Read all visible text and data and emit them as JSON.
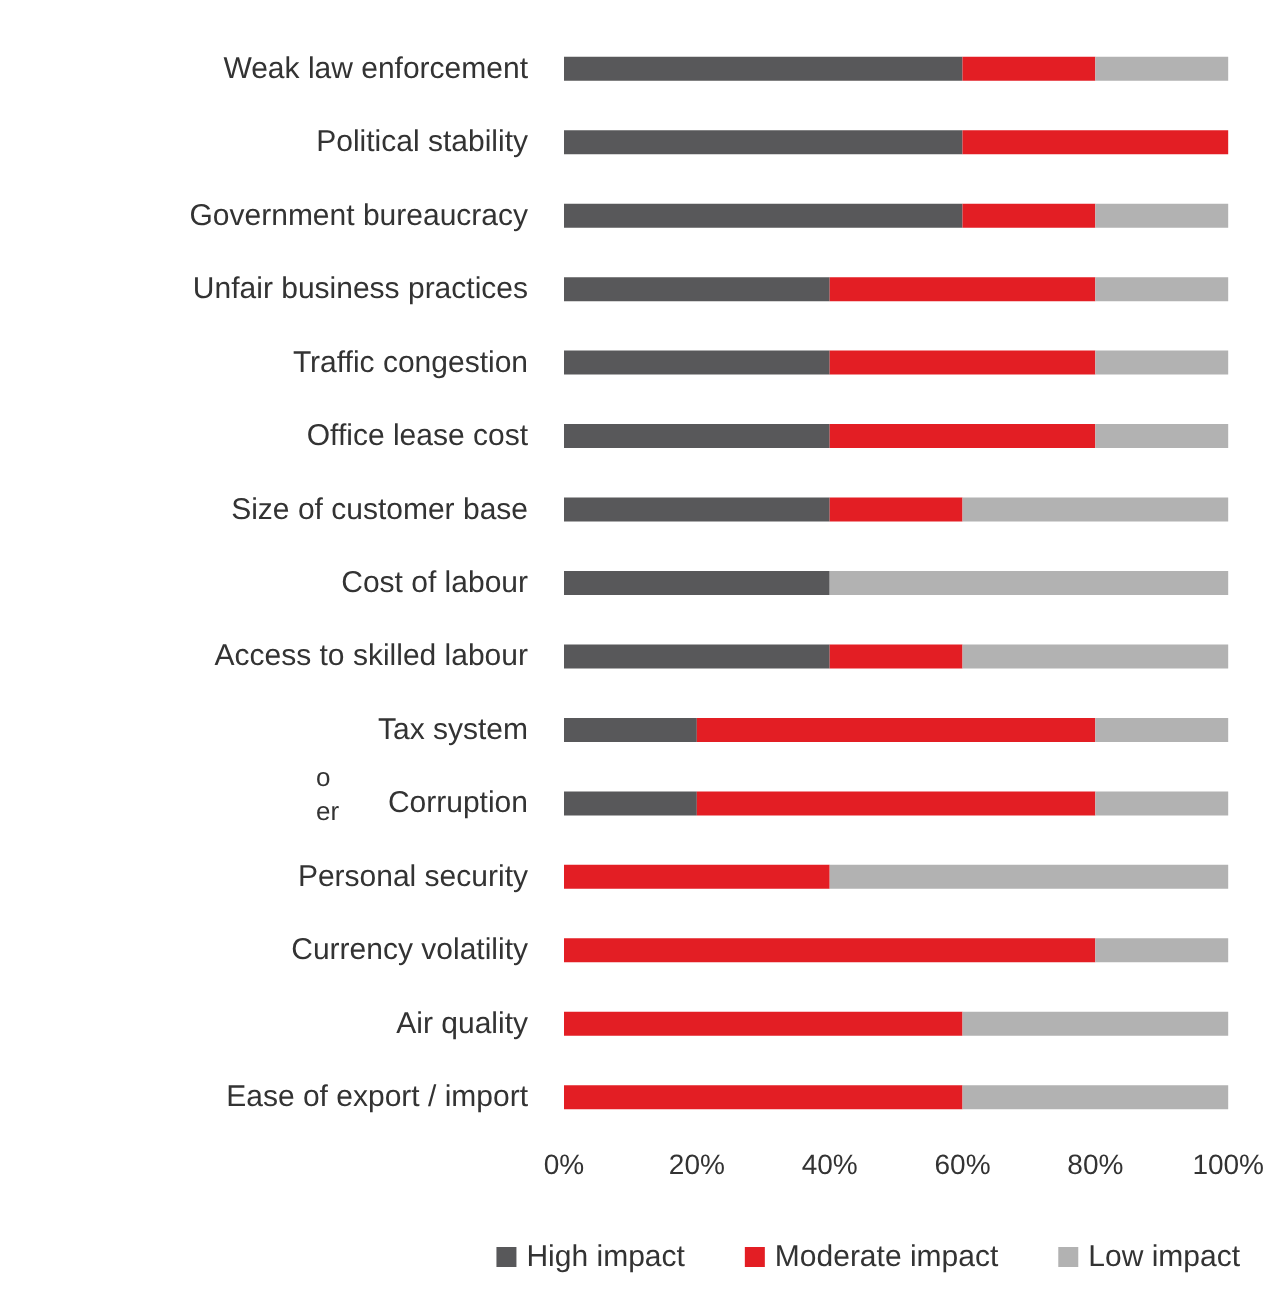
{
  "chart_data": {
    "type": "bar",
    "orientation": "horizontal",
    "stacked": true,
    "legend": "bottom",
    "grid": false,
    "categories": [
      "Weak law enforcement",
      "Political stability",
      "Government bureaucracy",
      "Unfair business practices",
      "Traffic congestion",
      "Office lease cost",
      "Size of customer base",
      "Cost of labour",
      "Access to skilled labour",
      "Tax system",
      "Corruption",
      "Personal security",
      "Currency volatility",
      "Air quality",
      "Ease of export / import"
    ],
    "series": [
      {
        "name": "High impact",
        "color": "#58585a",
        "values": [
          60,
          60,
          60,
          40,
          40,
          40,
          40,
          40,
          40,
          20,
          20,
          0,
          0,
          0,
          0
        ]
      },
      {
        "name": "Moderate impact",
        "color": "#e31e24",
        "values": [
          20,
          40,
          20,
          40,
          40,
          40,
          20,
          0,
          20,
          60,
          60,
          40,
          80,
          60,
          60
        ]
      },
      {
        "name": "Low impact",
        "color": "#b2b2b2",
        "values": [
          20,
          0,
          20,
          20,
          20,
          20,
          40,
          60,
          40,
          20,
          20,
          60,
          20,
          40,
          40
        ]
      }
    ],
    "xlim": [
      0,
      100
    ],
    "xticks": [
      {
        "value": 0,
        "label": "0%"
      },
      {
        "value": 20,
        "label": "20%"
      },
      {
        "value": 40,
        "label": "40%"
      },
      {
        "value": 60,
        "label": "60%"
      },
      {
        "value": 80,
        "label": "80%"
      },
      {
        "value": 100,
        "label": "100%"
      }
    ],
    "annotations": [
      "o",
      "er"
    ]
  }
}
